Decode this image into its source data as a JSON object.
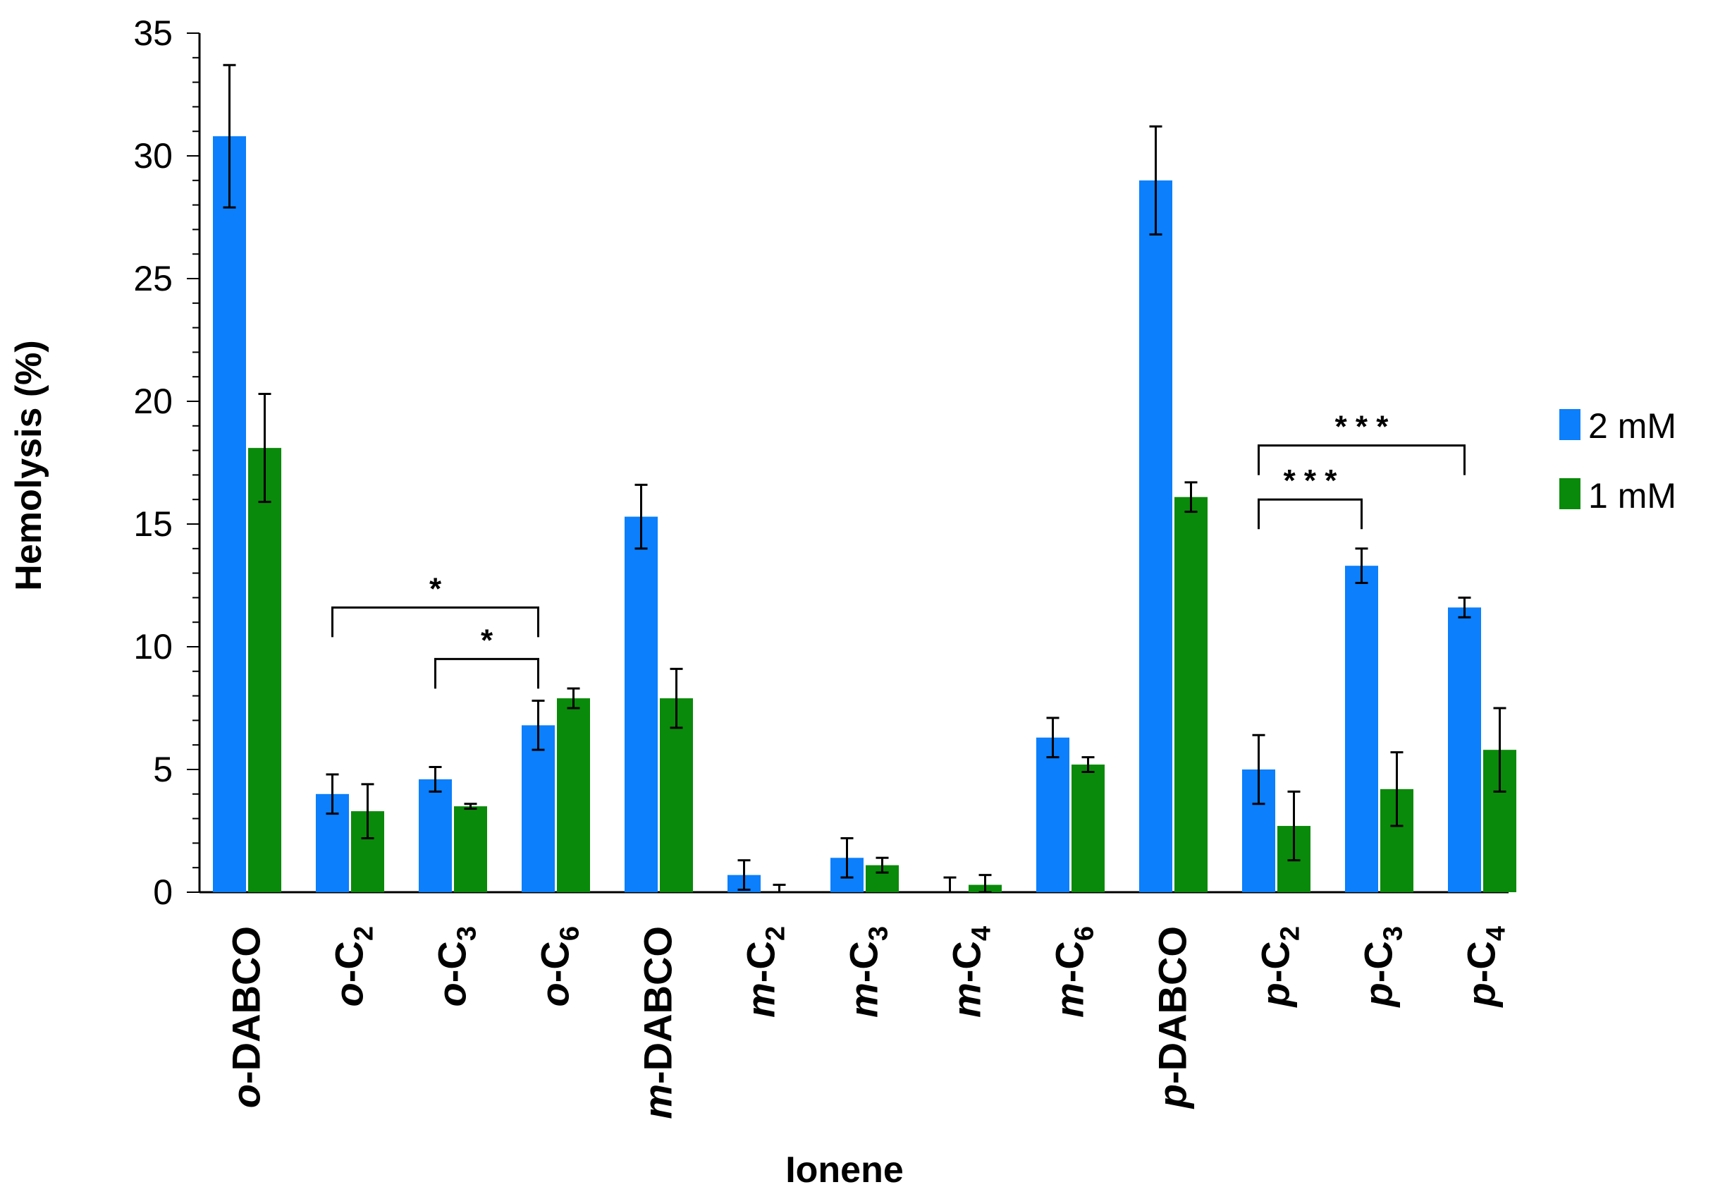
{
  "chart_data": {
    "type": "bar",
    "xlabel": "Ionene",
    "ylabel": "Hemolysis (%)",
    "ylim": [
      0,
      35
    ],
    "yticks": [
      "0",
      "5",
      "10",
      "15",
      "20",
      "25",
      "30",
      "35"
    ],
    "grid": false,
    "legend_position": "right",
    "categories": [
      {
        "prefix": "o",
        "base": "-DABCO",
        "sub": ""
      },
      {
        "prefix": "o",
        "base": "-C",
        "sub": "2"
      },
      {
        "prefix": "o",
        "base": "-C",
        "sub": "3"
      },
      {
        "prefix": "o",
        "base": "-C",
        "sub": "6"
      },
      {
        "prefix": "m",
        "base": "-DABCO",
        "sub": ""
      },
      {
        "prefix": "m",
        "base": "-C",
        "sub": "2"
      },
      {
        "prefix": "m",
        "base": "-C",
        "sub": "3"
      },
      {
        "prefix": "m",
        "base": "-C",
        "sub": "4"
      },
      {
        "prefix": "m",
        "base": "-C",
        "sub": "6"
      },
      {
        "prefix": "p",
        "base": "-DABCO",
        "sub": ""
      },
      {
        "prefix": "p",
        "base": "-C",
        "sub": "2"
      },
      {
        "prefix": "p",
        "base": "-C",
        "sub": "3"
      },
      {
        "prefix": "p",
        "base": "-C",
        "sub": "4"
      }
    ],
    "series": [
      {
        "name": "2 mM",
        "color": "#0b7ffc",
        "values": [
          30.8,
          4.0,
          4.6,
          6.8,
          15.3,
          0.7,
          1.4,
          0.0,
          6.3,
          29.0,
          5.0,
          13.3,
          11.6
        ],
        "errors": [
          2.9,
          0.8,
          0.5,
          1.0,
          1.3,
          0.6,
          0.8,
          0.6,
          0.8,
          2.2,
          1.4,
          0.7,
          0.4
        ]
      },
      {
        "name": "1 mM",
        "color": "#0a8a0a",
        "values": [
          18.1,
          3.3,
          3.5,
          7.9,
          7.9,
          0.0,
          1.1,
          0.3,
          5.2,
          16.1,
          2.7,
          4.2,
          5.8
        ],
        "errors": [
          2.2,
          1.1,
          0.1,
          0.4,
          1.2,
          0.3,
          0.3,
          0.4,
          0.3,
          0.6,
          1.4,
          1.5,
          1.7
        ]
      }
    ],
    "annotations": [
      {
        "text": "*",
        "from": 1,
        "to": 3,
        "y": 11.6
      },
      {
        "text": "*",
        "from": 2,
        "to": 3,
        "y": 9.5
      },
      {
        "text": "* * *",
        "from": 10,
        "to": 12,
        "y": 18.2
      },
      {
        "text": "* * *",
        "from": 10,
        "to": 11,
        "y": 16.0
      }
    ]
  }
}
